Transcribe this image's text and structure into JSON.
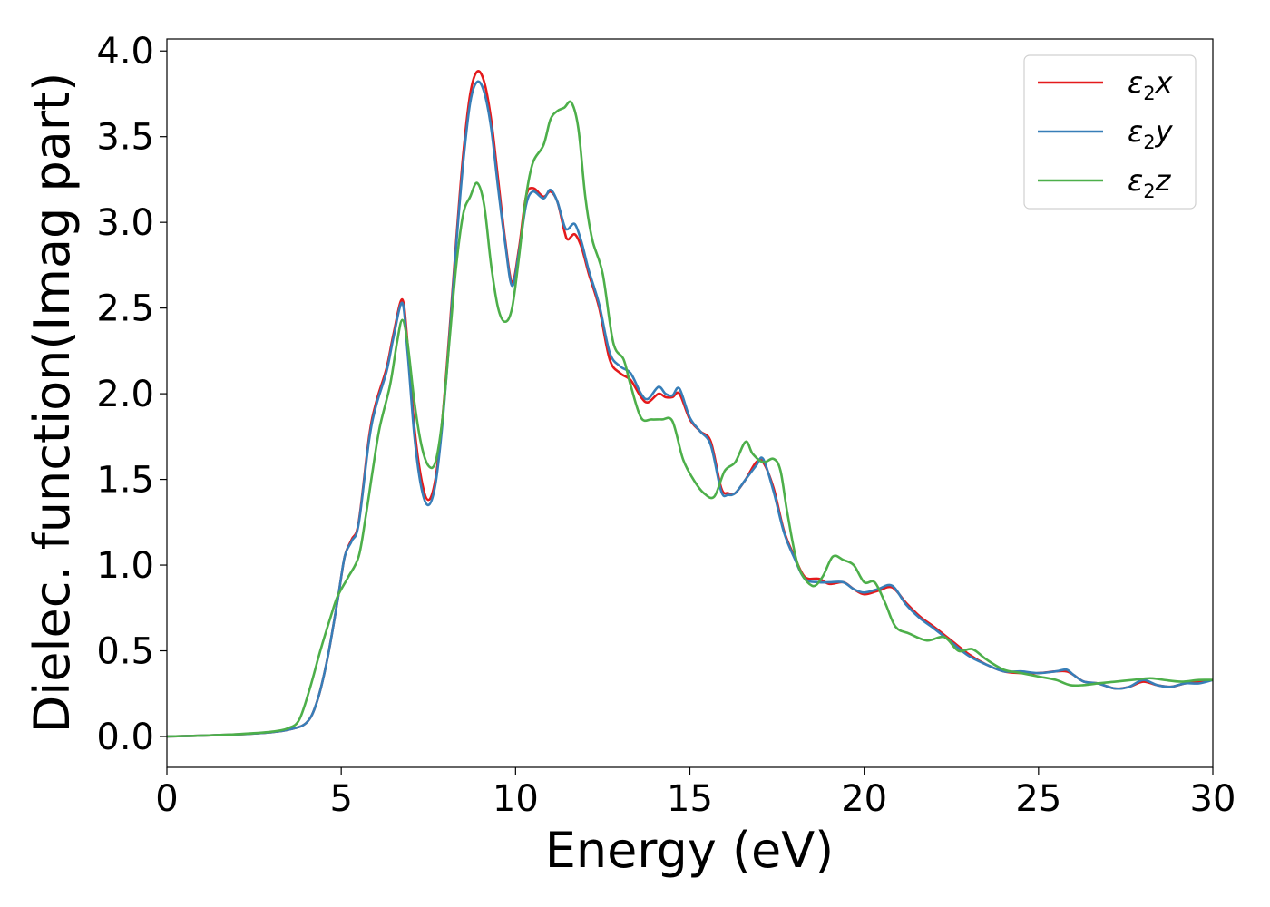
{
  "chart_data": {
    "type": "line",
    "xlabel": "Energy (eV)",
    "ylabel": "Dielec. function(Imag part)",
    "xlim": [
      0,
      30
    ],
    "ylim": [
      -0.18,
      4.07
    ],
    "xticks": [
      0,
      5,
      10,
      15,
      20,
      25,
      30
    ],
    "yticks": [
      0.0,
      0.5,
      1.0,
      1.5,
      2.0,
      2.5,
      3.0,
      3.5,
      4.0
    ],
    "xtick_labels": [
      "0",
      "5",
      "10",
      "15",
      "20",
      "25",
      "30"
    ],
    "ytick_labels": [
      "0.0",
      "0.5",
      "1.0",
      "1.5",
      "2.0",
      "2.5",
      "3.0",
      "3.5",
      "4.0"
    ],
    "grid": false,
    "legend_position": "top-right",
    "series": [
      {
        "name": "ε2x",
        "legend": {
          "symbol": "ε",
          "subscript": "2",
          "suffix": "x"
        },
        "color": "#e41a1c",
        "points": [
          [
            0,
            0
          ],
          [
            1,
            0.005
          ],
          [
            2,
            0.012
          ],
          [
            3,
            0.025
          ],
          [
            3.5,
            0.04
          ],
          [
            4,
            0.08
          ],
          [
            4.3,
            0.2
          ],
          [
            4.6,
            0.45
          ],
          [
            4.9,
            0.8
          ],
          [
            5.1,
            1.05
          ],
          [
            5.3,
            1.15
          ],
          [
            5.5,
            1.25
          ],
          [
            5.8,
            1.75
          ],
          [
            6,
            1.95
          ],
          [
            6.3,
            2.15
          ],
          [
            6.5,
            2.35
          ],
          [
            6.75,
            2.55
          ],
          [
            6.9,
            2.3
          ],
          [
            7.1,
            1.8
          ],
          [
            7.3,
            1.5
          ],
          [
            7.5,
            1.38
          ],
          [
            7.7,
            1.5
          ],
          [
            7.9,
            1.85
          ],
          [
            8.1,
            2.35
          ],
          [
            8.3,
            2.9
          ],
          [
            8.5,
            3.4
          ],
          [
            8.7,
            3.75
          ],
          [
            8.9,
            3.88
          ],
          [
            9.1,
            3.82
          ],
          [
            9.3,
            3.6
          ],
          [
            9.5,
            3.25
          ],
          [
            9.7,
            2.9
          ],
          [
            9.9,
            2.65
          ],
          [
            10.1,
            2.85
          ],
          [
            10.3,
            3.15
          ],
          [
            10.5,
            3.2
          ],
          [
            10.8,
            3.15
          ],
          [
            11,
            3.18
          ],
          [
            11.2,
            3.12
          ],
          [
            11.4,
            2.95
          ],
          [
            11.5,
            2.9
          ],
          [
            11.7,
            2.93
          ],
          [
            11.9,
            2.85
          ],
          [
            12.1,
            2.7
          ],
          [
            12.4,
            2.5
          ],
          [
            12.7,
            2.2
          ],
          [
            13,
            2.12
          ],
          [
            13.3,
            2.08
          ],
          [
            13.6,
            1.98
          ],
          [
            13.8,
            1.95
          ],
          [
            14.1,
            2.0
          ],
          [
            14.3,
            1.98
          ],
          [
            14.5,
            1.98
          ],
          [
            14.7,
            2.0
          ],
          [
            15,
            1.85
          ],
          [
            15.3,
            1.78
          ],
          [
            15.6,
            1.72
          ],
          [
            15.9,
            1.45
          ],
          [
            16.1,
            1.42
          ],
          [
            16.3,
            1.42
          ],
          [
            16.6,
            1.5
          ],
          [
            16.9,
            1.6
          ],
          [
            17.1,
            1.6
          ],
          [
            17.4,
            1.45
          ],
          [
            17.7,
            1.2
          ],
          [
            18,
            1.05
          ],
          [
            18.3,
            0.93
          ],
          [
            18.7,
            0.92
          ],
          [
            19,
            0.89
          ],
          [
            19.4,
            0.9
          ],
          [
            19.7,
            0.86
          ],
          [
            20,
            0.83
          ],
          [
            20.4,
            0.85
          ],
          [
            20.8,
            0.87
          ],
          [
            21.2,
            0.78
          ],
          [
            21.6,
            0.7
          ],
          [
            22,
            0.64
          ],
          [
            22.5,
            0.56
          ],
          [
            23,
            0.48
          ],
          [
            23.5,
            0.42
          ],
          [
            24,
            0.38
          ],
          [
            24.5,
            0.37
          ],
          [
            25,
            0.37
          ],
          [
            25.5,
            0.38
          ],
          [
            25.8,
            0.38
          ],
          [
            26,
            0.36
          ],
          [
            26.3,
            0.32
          ],
          [
            26.7,
            0.31
          ],
          [
            27.2,
            0.28
          ],
          [
            27.6,
            0.29
          ],
          [
            28,
            0.32
          ],
          [
            28.4,
            0.3
          ],
          [
            28.8,
            0.29
          ],
          [
            29.2,
            0.31
          ],
          [
            29.6,
            0.32
          ],
          [
            30,
            0.33
          ]
        ]
      },
      {
        "name": "ε2y",
        "legend": {
          "symbol": "ε",
          "subscript": "2",
          "suffix": "y"
        },
        "color": "#377eb8",
        "points": [
          [
            0,
            0
          ],
          [
            1,
            0.005
          ],
          [
            2,
            0.012
          ],
          [
            3,
            0.025
          ],
          [
            3.5,
            0.04
          ],
          [
            4,
            0.08
          ],
          [
            4.3,
            0.2
          ],
          [
            4.6,
            0.45
          ],
          [
            4.9,
            0.8
          ],
          [
            5.1,
            1.05
          ],
          [
            5.3,
            1.14
          ],
          [
            5.5,
            1.24
          ],
          [
            5.8,
            1.73
          ],
          [
            6,
            1.93
          ],
          [
            6.3,
            2.13
          ],
          [
            6.5,
            2.33
          ],
          [
            6.75,
            2.53
          ],
          [
            6.9,
            2.25
          ],
          [
            7.1,
            1.75
          ],
          [
            7.3,
            1.45
          ],
          [
            7.5,
            1.35
          ],
          [
            7.7,
            1.47
          ],
          [
            7.9,
            1.82
          ],
          [
            8.1,
            2.32
          ],
          [
            8.3,
            2.87
          ],
          [
            8.5,
            3.35
          ],
          [
            8.7,
            3.7
          ],
          [
            8.9,
            3.82
          ],
          [
            9.1,
            3.76
          ],
          [
            9.3,
            3.55
          ],
          [
            9.5,
            3.2
          ],
          [
            9.7,
            2.88
          ],
          [
            9.9,
            2.63
          ],
          [
            10.1,
            2.83
          ],
          [
            10.3,
            3.1
          ],
          [
            10.5,
            3.18
          ],
          [
            10.8,
            3.14
          ],
          [
            11,
            3.19
          ],
          [
            11.2,
            3.12
          ],
          [
            11.4,
            2.98
          ],
          [
            11.5,
            2.96
          ],
          [
            11.7,
            2.99
          ],
          [
            11.9,
            2.88
          ],
          [
            12.1,
            2.72
          ],
          [
            12.4,
            2.52
          ],
          [
            12.7,
            2.24
          ],
          [
            13,
            2.16
          ],
          [
            13.3,
            2.12
          ],
          [
            13.6,
            2.0
          ],
          [
            13.8,
            1.97
          ],
          [
            14.1,
            2.04
          ],
          [
            14.3,
            2.0
          ],
          [
            14.5,
            1.99
          ],
          [
            14.7,
            2.03
          ],
          [
            15,
            1.86
          ],
          [
            15.3,
            1.78
          ],
          [
            15.6,
            1.7
          ],
          [
            15.9,
            1.43
          ],
          [
            16.1,
            1.41
          ],
          [
            16.3,
            1.42
          ],
          [
            16.6,
            1.5
          ],
          [
            16.9,
            1.58
          ],
          [
            17.1,
            1.62
          ],
          [
            17.4,
            1.43
          ],
          [
            17.7,
            1.19
          ],
          [
            18,
            1.04
          ],
          [
            18.3,
            0.92
          ],
          [
            18.7,
            0.9
          ],
          [
            19,
            0.9
          ],
          [
            19.4,
            0.9
          ],
          [
            19.7,
            0.86
          ],
          [
            20,
            0.84
          ],
          [
            20.4,
            0.86
          ],
          [
            20.8,
            0.88
          ],
          [
            21.2,
            0.77
          ],
          [
            21.6,
            0.69
          ],
          [
            22,
            0.63
          ],
          [
            22.5,
            0.55
          ],
          [
            23,
            0.47
          ],
          [
            23.5,
            0.42
          ],
          [
            24,
            0.38
          ],
          [
            24.5,
            0.38
          ],
          [
            25,
            0.37
          ],
          [
            25.5,
            0.38
          ],
          [
            25.8,
            0.39
          ],
          [
            26,
            0.36
          ],
          [
            26.3,
            0.32
          ],
          [
            26.7,
            0.31
          ],
          [
            27.2,
            0.28
          ],
          [
            27.6,
            0.29
          ],
          [
            28,
            0.33
          ],
          [
            28.4,
            0.3
          ],
          [
            28.8,
            0.29
          ],
          [
            29.2,
            0.31
          ],
          [
            29.6,
            0.31
          ],
          [
            30,
            0.33
          ]
        ]
      },
      {
        "name": "ε2z",
        "legend": {
          "symbol": "ε",
          "subscript": "2",
          "suffix": "z"
        },
        "color": "#4daf4a",
        "points": [
          [
            0,
            0
          ],
          [
            1,
            0.005
          ],
          [
            2,
            0.013
          ],
          [
            3,
            0.028
          ],
          [
            3.5,
            0.05
          ],
          [
            3.8,
            0.1
          ],
          [
            4.1,
            0.28
          ],
          [
            4.4,
            0.5
          ],
          [
            4.7,
            0.7
          ],
          [
            4.9,
            0.82
          ],
          [
            5.2,
            0.93
          ],
          [
            5.5,
            1.05
          ],
          [
            5.7,
            1.28
          ],
          [
            5.9,
            1.55
          ],
          [
            6.1,
            1.8
          ],
          [
            6.4,
            2.05
          ],
          [
            6.6,
            2.3
          ],
          [
            6.75,
            2.43
          ],
          [
            6.9,
            2.3
          ],
          [
            7.1,
            1.95
          ],
          [
            7.3,
            1.7
          ],
          [
            7.5,
            1.58
          ],
          [
            7.7,
            1.6
          ],
          [
            7.9,
            1.85
          ],
          [
            8.1,
            2.3
          ],
          [
            8.3,
            2.75
          ],
          [
            8.5,
            3.05
          ],
          [
            8.7,
            3.15
          ],
          [
            8.9,
            3.23
          ],
          [
            9.1,
            3.1
          ],
          [
            9.3,
            2.75
          ],
          [
            9.5,
            2.5
          ],
          [
            9.7,
            2.42
          ],
          [
            9.9,
            2.5
          ],
          [
            10.1,
            2.8
          ],
          [
            10.3,
            3.15
          ],
          [
            10.5,
            3.35
          ],
          [
            10.8,
            3.45
          ],
          [
            11,
            3.6
          ],
          [
            11.2,
            3.65
          ],
          [
            11.4,
            3.67
          ],
          [
            11.6,
            3.7
          ],
          [
            11.8,
            3.55
          ],
          [
            12.0,
            3.15
          ],
          [
            12.2,
            2.9
          ],
          [
            12.5,
            2.7
          ],
          [
            12.8,
            2.3
          ],
          [
            13.1,
            2.2
          ],
          [
            13.3,
            2.05
          ],
          [
            13.6,
            1.86
          ],
          [
            13.9,
            1.85
          ],
          [
            14.2,
            1.85
          ],
          [
            14.5,
            1.84
          ],
          [
            14.8,
            1.62
          ],
          [
            15.1,
            1.5
          ],
          [
            15.4,
            1.42
          ],
          [
            15.7,
            1.4
          ],
          [
            16,
            1.55
          ],
          [
            16.3,
            1.6
          ],
          [
            16.6,
            1.72
          ],
          [
            16.8,
            1.65
          ],
          [
            17.1,
            1.6
          ],
          [
            17.4,
            1.62
          ],
          [
            17.6,
            1.55
          ],
          [
            17.8,
            1.3
          ],
          [
            18.1,
            1.0
          ],
          [
            18.5,
            0.88
          ],
          [
            18.8,
            0.93
          ],
          [
            19.1,
            1.05
          ],
          [
            19.4,
            1.03
          ],
          [
            19.7,
            1.0
          ],
          [
            20,
            0.9
          ],
          [
            20.3,
            0.9
          ],
          [
            20.6,
            0.78
          ],
          [
            20.9,
            0.64
          ],
          [
            21.3,
            0.6
          ],
          [
            21.8,
            0.56
          ],
          [
            22.3,
            0.58
          ],
          [
            22.7,
            0.5
          ],
          [
            23.1,
            0.51
          ],
          [
            23.5,
            0.45
          ],
          [
            24,
            0.39
          ],
          [
            24.5,
            0.37
          ],
          [
            25,
            0.35
          ],
          [
            25.5,
            0.33
          ],
          [
            25.9,
            0.3
          ],
          [
            26.3,
            0.3
          ],
          [
            26.7,
            0.31
          ],
          [
            27.2,
            0.32
          ],
          [
            27.7,
            0.33
          ],
          [
            28.2,
            0.34
          ],
          [
            28.6,
            0.33
          ],
          [
            29.1,
            0.32
          ],
          [
            29.6,
            0.33
          ],
          [
            30,
            0.33
          ]
        ]
      }
    ]
  }
}
